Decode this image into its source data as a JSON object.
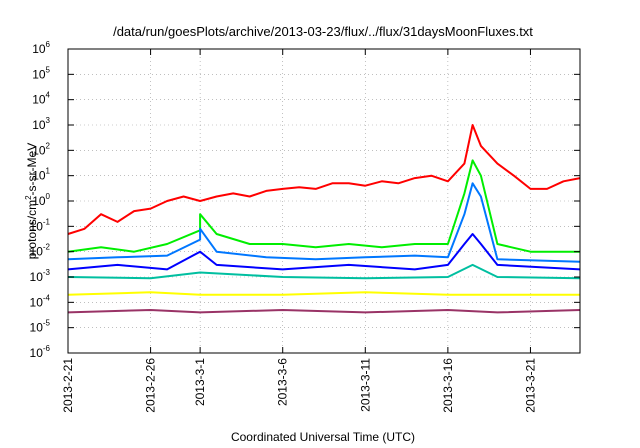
{
  "chart_data": {
    "type": "line",
    "title": "/data/run/goesPlots/archive/2013-03-23/flux/../flux/31daysMoonFluxes.txt",
    "xlabel": "Coordinated Universal Time (UTC)",
    "ylabel": {
      "base": "protons/cm",
      "sup": "2",
      "rest": "-s-sr-MeV"
    },
    "y_scale": "log",
    "ylim": [
      1e-06,
      1000000.0
    ],
    "xlim": [
      "2013-02-21",
      "2013-03-24"
    ],
    "grid": true,
    "x_ticks": [
      "2013-2-21",
      "2013-2-26",
      "2013-3-1",
      "2013-3-6",
      "2013-3-11",
      "2013-3-16",
      "2013-3-21"
    ],
    "y_ticks": [
      {
        "base": "10",
        "exp": "-6"
      },
      {
        "base": "10",
        "exp": "-5"
      },
      {
        "base": "10",
        "exp": "-4"
      },
      {
        "base": "10",
        "exp": "-3"
      },
      {
        "base": "10",
        "exp": "-2"
      },
      {
        "base": "10",
        "exp": "-1"
      },
      {
        "base": "10",
        "exp": "0"
      },
      {
        "base": "10",
        "exp": "1"
      },
      {
        "base": "10",
        "exp": "2"
      },
      {
        "base": "10",
        "exp": "3"
      },
      {
        "base": "10",
        "exp": "4"
      },
      {
        "base": "10",
        "exp": "5"
      },
      {
        "base": "10",
        "exp": "6"
      }
    ],
    "series": [
      {
        "color": "#ff0000",
        "values": [
          [
            "2013-02-21",
            0.05
          ],
          [
            "2013-02-22",
            0.08
          ],
          [
            "2013-02-23",
            0.3
          ],
          [
            "2013-02-24",
            0.15
          ],
          [
            "2013-02-25",
            0.4
          ],
          [
            "2013-02-26",
            0.5
          ],
          [
            "2013-02-27",
            1.0
          ],
          [
            "2013-02-28",
            1.5
          ],
          [
            "2013-03-01",
            1.0
          ],
          [
            "2013-03-02",
            1.5
          ],
          [
            "2013-03-03",
            2.0
          ],
          [
            "2013-03-04",
            1.5
          ],
          [
            "2013-03-05",
            2.5
          ],
          [
            "2013-03-06",
            3.0
          ],
          [
            "2013-03-07",
            3.5
          ],
          [
            "2013-03-08",
            3.0
          ],
          [
            "2013-03-09",
            5.0
          ],
          [
            "2013-03-10",
            5.0
          ],
          [
            "2013-03-11",
            4.0
          ],
          [
            "2013-03-12",
            6.0
          ],
          [
            "2013-03-13",
            5.0
          ],
          [
            "2013-03-14",
            8.0
          ],
          [
            "2013-03-15",
            10
          ],
          [
            "2013-03-16",
            6.0
          ],
          [
            "2013-03-17",
            30
          ],
          [
            "2013-03-17.5",
            1000
          ],
          [
            "2013-03-18",
            150
          ],
          [
            "2013-03-19",
            30
          ],
          [
            "2013-03-20",
            10
          ],
          [
            "2013-03-21",
            3.0
          ],
          [
            "2013-03-22",
            3.0
          ],
          [
            "2013-03-23",
            6.0
          ],
          [
            "2013-03-24",
            8.0
          ]
        ]
      },
      {
        "color": "#00ee00",
        "values": [
          [
            "2013-02-21",
            0.01
          ],
          [
            "2013-02-23",
            0.015
          ],
          [
            "2013-02-25",
            0.01
          ],
          [
            "2013-02-27",
            0.02
          ],
          [
            "2013-02-29",
            0.07
          ],
          [
            "2013-03-01",
            0.3
          ],
          [
            "2013-03-02",
            0.05
          ],
          [
            "2013-03-04",
            0.02
          ],
          [
            "2013-03-06",
            0.02
          ],
          [
            "2013-03-08",
            0.015
          ],
          [
            "2013-03-10",
            0.02
          ],
          [
            "2013-03-12",
            0.015
          ],
          [
            "2013-03-14",
            0.02
          ],
          [
            "2013-03-16",
            0.02
          ],
          [
            "2013-03-17",
            2.0
          ],
          [
            "2013-03-17.5",
            40
          ],
          [
            "2013-03-18",
            10
          ],
          [
            "2013-03-19",
            0.02
          ],
          [
            "2013-03-21",
            0.01
          ],
          [
            "2013-03-24",
            0.01
          ]
        ]
      },
      {
        "color": "#0077ff",
        "values": [
          [
            "2013-02-21",
            0.005
          ],
          [
            "2013-02-24",
            0.006
          ],
          [
            "2013-02-27",
            0.007
          ],
          [
            "2013-02-29",
            0.03
          ],
          [
            "2013-03-01",
            0.08
          ],
          [
            "2013-03-02",
            0.01
          ],
          [
            "2013-03-05",
            0.006
          ],
          [
            "2013-03-08",
            0.005
          ],
          [
            "2013-03-11",
            0.006
          ],
          [
            "2013-03-14",
            0.007
          ],
          [
            "2013-03-16",
            0.006
          ],
          [
            "2013-03-17",
            0.3
          ],
          [
            "2013-03-17.5",
            5
          ],
          [
            "2013-03-18",
            1.5
          ],
          [
            "2013-03-19",
            0.005
          ],
          [
            "2013-03-24",
            0.004
          ]
        ]
      },
      {
        "color": "#0000ff",
        "values": [
          [
            "2013-02-21",
            0.002
          ],
          [
            "2013-02-24",
            0.003
          ],
          [
            "2013-02-27",
            0.002
          ],
          [
            "2013-03-01",
            0.01
          ],
          [
            "2013-03-02",
            0.003
          ],
          [
            "2013-03-06",
            0.002
          ],
          [
            "2013-03-10",
            0.003
          ],
          [
            "2013-03-14",
            0.002
          ],
          [
            "2013-03-16",
            0.003
          ],
          [
            "2013-03-17",
            0.02
          ],
          [
            "2013-03-17.5",
            0.05
          ],
          [
            "2013-03-18",
            0.02
          ],
          [
            "2013-03-19",
            0.003
          ],
          [
            "2013-03-24",
            0.002
          ]
        ]
      },
      {
        "color": "#00bfa0",
        "values": [
          [
            "2013-02-21",
            0.001
          ],
          [
            "2013-02-26",
            0.0009
          ],
          [
            "2013-03-01",
            0.0015
          ],
          [
            "2013-03-06",
            0.001
          ],
          [
            "2013-03-11",
            0.0009
          ],
          [
            "2013-03-16",
            0.001
          ],
          [
            "2013-03-17.5",
            0.003
          ],
          [
            "2013-03-19",
            0.001
          ],
          [
            "2013-03-24",
            0.0009
          ]
        ]
      },
      {
        "color": "#ffff00",
        "values": [
          [
            "2013-02-21",
            0.0002
          ],
          [
            "2013-02-26",
            0.00025
          ],
          [
            "2013-03-01",
            0.0002
          ],
          [
            "2013-03-06",
            0.0002
          ],
          [
            "2013-03-11",
            0.00025
          ],
          [
            "2013-03-16",
            0.0002
          ],
          [
            "2013-03-19",
            0.0002
          ],
          [
            "2013-03-24",
            0.0002
          ]
        ]
      },
      {
        "color": "#993366",
        "values": [
          [
            "2013-02-21",
            4e-05
          ],
          [
            "2013-02-26",
            5e-05
          ],
          [
            "2013-03-01",
            4e-05
          ],
          [
            "2013-03-06",
            5e-05
          ],
          [
            "2013-03-11",
            4e-05
          ],
          [
            "2013-03-16",
            5e-05
          ],
          [
            "2013-03-19",
            4e-05
          ],
          [
            "2013-03-24",
            5e-05
          ]
        ]
      }
    ]
  }
}
